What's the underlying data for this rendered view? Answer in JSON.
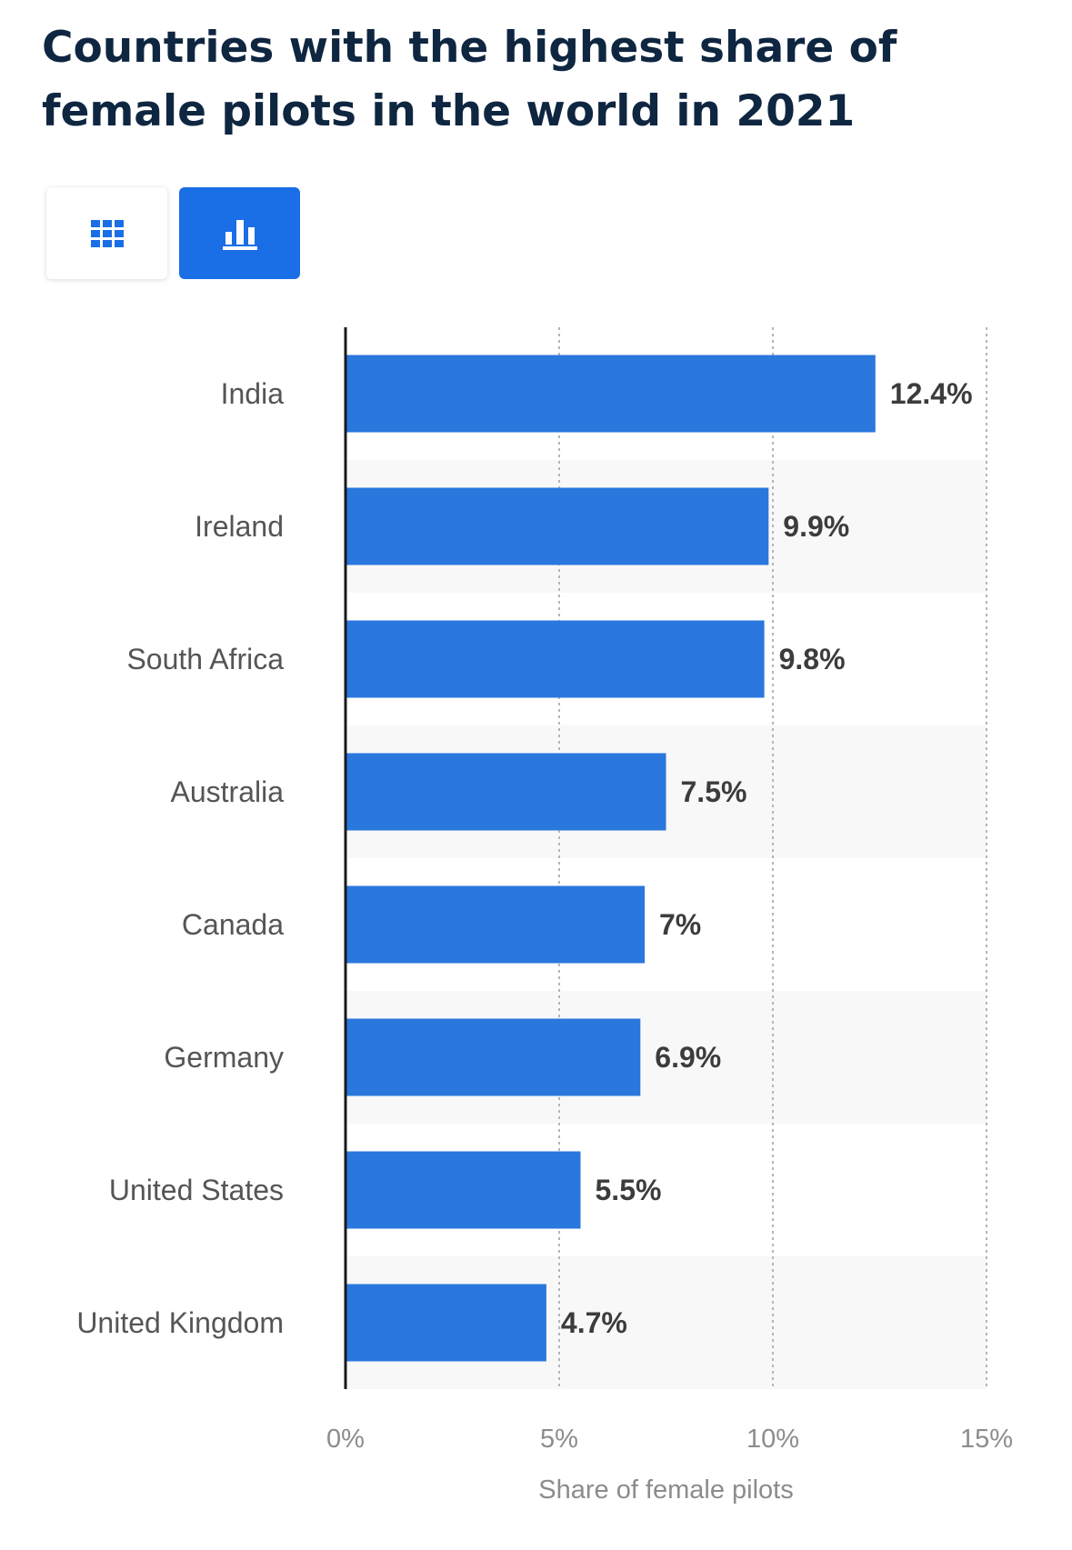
{
  "page": {
    "title": "Countries with the highest share of female pilots in the world in 2021"
  },
  "toolbar": {
    "table_icon": "grid-table-icon",
    "chart_icon": "bar-chart-icon",
    "active": "chart",
    "accent_color": "#1a6ee6"
  },
  "chart_data": {
    "type": "bar",
    "orientation": "horizontal",
    "title": "Countries with the highest share of female pilots in the world in 2021",
    "categories": [
      "India",
      "Ireland",
      "South Africa",
      "Australia",
      "Canada",
      "Germany",
      "United States",
      "United Kingdom"
    ],
    "values": [
      12.4,
      9.9,
      9.8,
      7.5,
      7,
      6.9,
      5.5,
      4.7
    ],
    "value_labels": [
      "12.4%",
      "9.9%",
      "9.8%",
      "7.5%",
      "7%",
      "6.9%",
      "5.5%",
      "4.7%"
    ],
    "xlabel": "Share of female pilots",
    "ylabel": "",
    "xlim": [
      0,
      15
    ],
    "x_ticks": [
      0,
      5,
      10,
      15
    ],
    "x_tick_labels": [
      "0%",
      "5%",
      "10%",
      "15%"
    ],
    "grid": true,
    "bar_color": "#2a77dd",
    "band_color": "#f8f8f8"
  }
}
